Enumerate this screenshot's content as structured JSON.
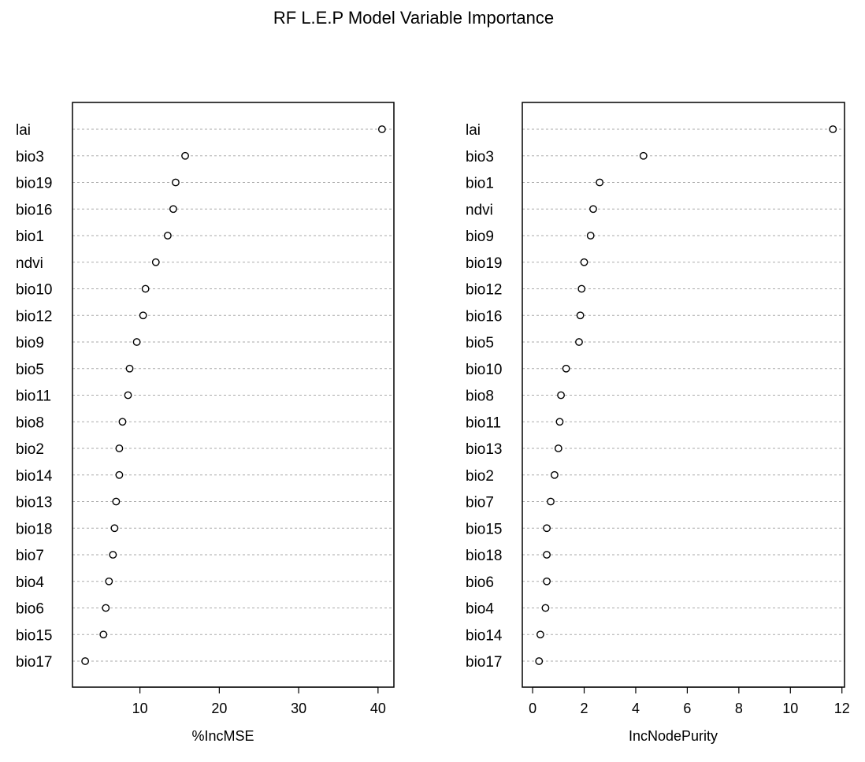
{
  "title": "RF L.E.P Model Variable Importance",
  "chart_data": [
    {
      "type": "scatter",
      "xlabel": "%IncMSE",
      "xlim": [
        1.5,
        42
      ],
      "xticks": [
        10,
        20,
        30,
        40
      ],
      "grid": "dotted-horizontal",
      "categories": [
        "lai",
        "bio3",
        "bio19",
        "bio16",
        "bio1",
        "ndvi",
        "bio10",
        "bio12",
        "bio9",
        "bio5",
        "bio11",
        "bio8",
        "bio2",
        "bio14",
        "bio13",
        "bio18",
        "bio7",
        "bio4",
        "bio6",
        "bio15",
        "bio17"
      ],
      "values": [
        40.5,
        15.7,
        14.5,
        14.2,
        13.5,
        12.0,
        10.7,
        10.4,
        9.6,
        8.7,
        8.5,
        7.8,
        7.4,
        7.4,
        7.0,
        6.8,
        6.6,
        6.1,
        5.7,
        5.4,
        3.1
      ]
    },
    {
      "type": "scatter",
      "xlabel": "IncNodePurity",
      "xlim": [
        -0.4,
        12.1
      ],
      "xticks": [
        0,
        2,
        4,
        6,
        8,
        10,
        12
      ],
      "grid": "dotted-horizontal",
      "categories": [
        "lai",
        "bio3",
        "bio1",
        "ndvi",
        "bio9",
        "bio19",
        "bio12",
        "bio16",
        "bio5",
        "bio10",
        "bio8",
        "bio11",
        "bio13",
        "bio2",
        "bio7",
        "bio15",
        "bio18",
        "bio6",
        "bio4",
        "bio14",
        "bio17"
      ],
      "values": [
        11.65,
        4.3,
        2.6,
        2.35,
        2.25,
        2.0,
        1.9,
        1.85,
        1.8,
        1.3,
        1.1,
        1.05,
        1.0,
        0.85,
        0.7,
        0.55,
        0.55,
        0.55,
        0.5,
        0.3,
        0.25
      ]
    }
  ]
}
